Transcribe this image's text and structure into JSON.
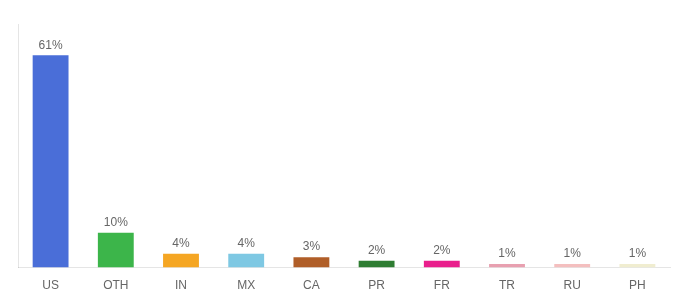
{
  "chart_data": {
    "type": "bar",
    "categories": [
      "US",
      "OTH",
      "IN",
      "MX",
      "CA",
      "PR",
      "FR",
      "TR",
      "RU",
      "PH"
    ],
    "values": [
      61,
      10,
      4,
      4,
      3,
      2,
      2,
      1,
      1,
      1
    ],
    "value_labels": [
      "61%",
      "10%",
      "4%",
      "4%",
      "3%",
      "2%",
      "2%",
      "1%",
      "1%",
      "1%"
    ],
    "colors": [
      "#4A6ED8",
      "#3CB54A",
      "#F5A623",
      "#7EC8E3",
      "#B05E28",
      "#2E7D32",
      "#E91E8C",
      "#E8A0B0",
      "#F4BFBF",
      "#F0EDD0"
    ],
    "ylim": [
      0,
      70
    ],
    "grid": false,
    "data_labels": true,
    "tick_labels": "x"
  }
}
